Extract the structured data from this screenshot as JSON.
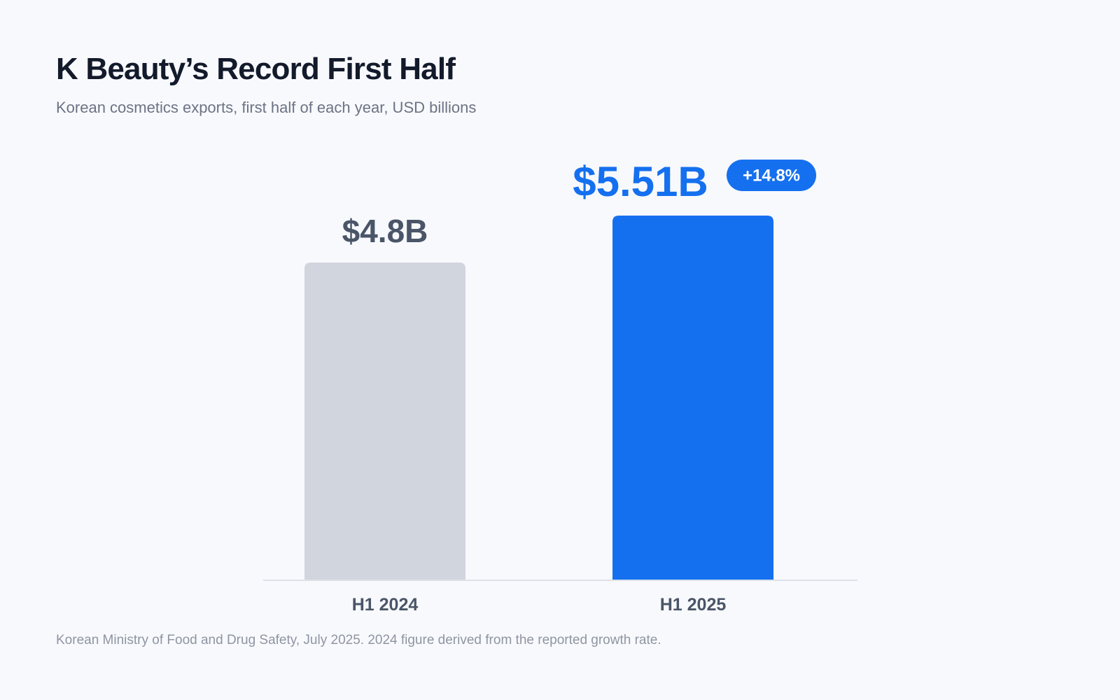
{
  "header": {
    "title": "K Beauty’s Record First Half",
    "subtitle": "Korean cosmetics exports, first half of each year, USD billions"
  },
  "footer": {
    "source": "Korean Ministry of Food and Drug Safety, July 2025. 2024 figure derived from the reported growth rate."
  },
  "chart_data": {
    "type": "bar",
    "title": "K Beauty’s Record First Half",
    "subtitle": "Korean cosmetics exports, first half of each year, USD billions",
    "xlabel": "",
    "ylabel": "",
    "grid": false,
    "categories": [
      "H1 2024",
      "H1 2025"
    ],
    "values": [
      4.8,
      5.51
    ],
    "value_labels": [
      "$4.8B",
      "$5.51B"
    ],
    "annotations": [
      {
        "category": "H1 2025",
        "text": "+14.8%"
      }
    ],
    "colors": {
      "H1 2024": "#d1d5dd",
      "H1 2025": "#1570ef",
      "label_2024": "#4a5568",
      "label_2025": "#1570ef",
      "badge_bg": "#1570ef",
      "badge_text": "#ffffff",
      "category_label": "#4a5568",
      "baseline": "#dde1e7"
    }
  }
}
